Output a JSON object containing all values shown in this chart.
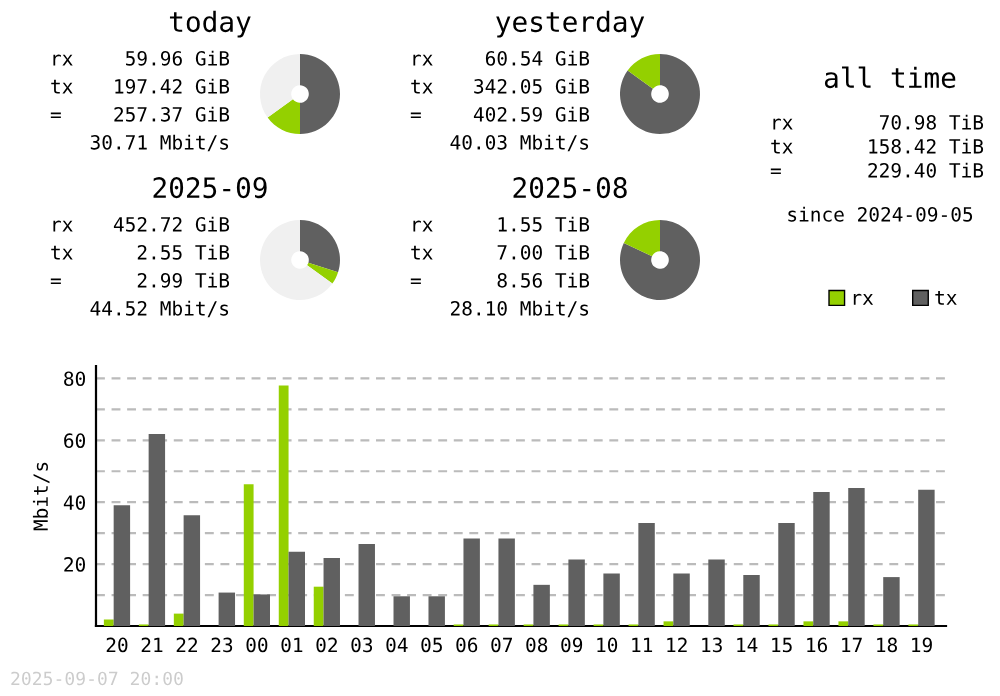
{
  "chart_data": [
    {
      "type": "donut",
      "title": "today",
      "categories": [
        null,
        null,
        null
      ],
      "values": [
        50,
        15,
        35
      ],
      "colors": [
        "#606060",
        "#94d000",
        "#f0f0f0"
      ],
      "annotations": [
        "rx 59.96 GiB",
        "tx 197.42 GiB",
        "= 257.37 GiB",
        "30.71 Mbit/s"
      ]
    },
    {
      "type": "donut",
      "title": "yesterday",
      "categories": [
        null,
        null
      ],
      "values": [
        85,
        15
      ],
      "colors": [
        "#606060",
        "#94d000"
      ],
      "annotations": [
        "rx 60.54 GiB",
        "tx 342.05 GiB",
        "= 402.59 GiB",
        "40.03 Mbit/s"
      ]
    },
    {
      "type": "donut",
      "title": "2025-09",
      "categories": [
        null,
        null,
        null
      ],
      "values": [
        30,
        5,
        65
      ],
      "colors": [
        "#606060",
        "#94d000",
        "#f0f0f0"
      ],
      "annotations": [
        "rx 452.72 GiB",
        "tx 2.55 TiB",
        "= 2.99 TiB",
        "44.52 Mbit/s"
      ]
    },
    {
      "type": "donut",
      "title": "2025-08",
      "categories": [
        null,
        null
      ],
      "values": [
        82,
        18
      ],
      "colors": [
        "#606060",
        "#94d000"
      ],
      "annotations": [
        "rx 1.55 TiB",
        "tx 7.00 TiB",
        "= 8.56 TiB",
        "28.10 Mbit/s"
      ]
    },
    {
      "type": "other",
      "title": "all time",
      "annotations": [
        "rx 70.98 TiB",
        "tx 158.42 TiB",
        "= 229.40 TiB",
        "since 2024-09-05"
      ]
    },
    {
      "type": "bar",
      "ylabel": "Mbit/s",
      "categories": [
        "20",
        "21",
        "22",
        "23",
        "00",
        "01",
        "02",
        "03",
        "04",
        "05",
        "06",
        "07",
        "08",
        "09",
        "10",
        "11",
        "12",
        "13",
        "14",
        "15",
        "16",
        "17",
        "18",
        "19"
      ],
      "series": [
        {
          "name": "rx",
          "color": "#94d000",
          "values": [
            2.1,
            0.5,
            4,
            0,
            45.8,
            77.7,
            12.7,
            0,
            0,
            0,
            0.5,
            0.5,
            0.5,
            0.5,
            0.5,
            0.5,
            1.5,
            0,
            0.5,
            0.5,
            1.5,
            1.5,
            0.5,
            0.5
          ]
        },
        {
          "name": "tx",
          "color": "#606060",
          "values": [
            39,
            62,
            35.8,
            10.8,
            10.2,
            24,
            22,
            26.5,
            9.6,
            9.6,
            28.3,
            28.3,
            13.3,
            21.5,
            17,
            33.3,
            17,
            21.5,
            16.5,
            33.3,
            43.3,
            44.6,
            15.8,
            44
          ]
        }
      ],
      "ylim": [
        0,
        84
      ],
      "yticks": [
        {
          "value": 10,
          "label": null
        },
        20,
        {
          "value": 30,
          "label": null
        },
        40,
        {
          "value": 50,
          "label": null
        },
        60,
        {
          "value": 70,
          "label": null
        },
        80
      ],
      "grid": "y",
      "legend": "top right",
      "annotations": [
        "2025-09-07 20:00"
      ]
    }
  ]
}
